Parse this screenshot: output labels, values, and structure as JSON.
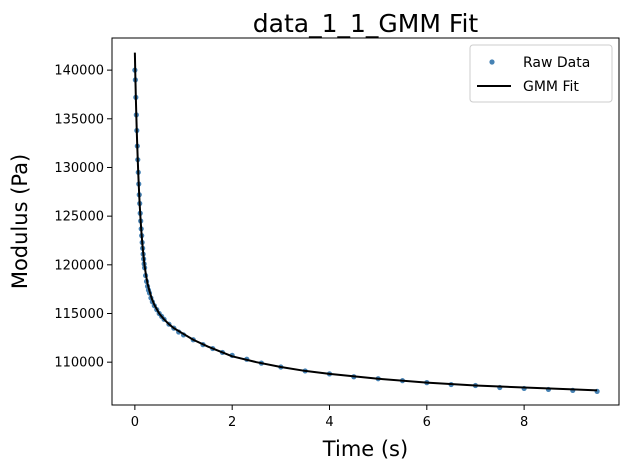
{
  "chart_data": {
    "type": "scatter",
    "title": "data_1_1_GMM Fit",
    "xlabel": "Time (s)",
    "ylabel": "Modulus (Pa)",
    "xlim": [
      -0.47,
      9.95
    ],
    "ylim": [
      105600,
      143300
    ],
    "xticks": [
      0,
      2,
      4,
      6,
      8
    ],
    "yticks": [
      110000,
      115000,
      120000,
      125000,
      130000,
      135000,
      140000
    ],
    "grid": false,
    "legend_position": "top-right",
    "colors": {
      "raw": "#4682b4",
      "fit": "#000000"
    },
    "series": [
      {
        "name": "Raw Data",
        "kind": "points",
        "x": [
          0.0,
          0.01,
          0.02,
          0.03,
          0.04,
          0.05,
          0.06,
          0.07,
          0.08,
          0.09,
          0.1,
          0.11,
          0.12,
          0.13,
          0.14,
          0.15,
          0.16,
          0.17,
          0.18,
          0.19,
          0.2,
          0.22,
          0.24,
          0.26,
          0.28,
          0.3,
          0.33,
          0.36,
          0.4,
          0.45,
          0.5,
          0.55,
          0.6,
          0.7,
          0.8,
          0.9,
          1.0,
          1.2,
          1.4,
          1.6,
          1.8,
          2.0,
          2.3,
          2.6,
          3.0,
          3.5,
          4.0,
          4.5,
          5.0,
          5.5,
          6.0,
          6.5,
          7.0,
          7.5,
          8.0,
          8.5,
          9.0,
          9.5
        ],
        "y": [
          140000,
          139000,
          137200,
          135400,
          133800,
          132200,
          130800,
          129500,
          128300,
          127200,
          126300,
          125300,
          124500,
          123700,
          123000,
          122300,
          121700,
          121100,
          120600,
          120100,
          119700,
          118900,
          118300,
          117800,
          117400,
          117100,
          116600,
          116200,
          115800,
          115400,
          115000,
          114700,
          114400,
          113900,
          113500,
          113100,
          112800,
          112300,
          111800,
          111400,
          111000,
          110700,
          110300,
          109900,
          109500,
          109100,
          108800,
          108500,
          108300,
          108100,
          107900,
          107700,
          107600,
          107400,
          107300,
          107200,
          107100,
          107000
        ]
      },
      {
        "name": "GMM Fit",
        "kind": "line",
        "x": [
          0.0,
          0.01,
          0.02,
          0.03,
          0.04,
          0.05,
          0.06,
          0.07,
          0.08,
          0.09,
          0.1,
          0.12,
          0.14,
          0.16,
          0.18,
          0.2,
          0.23,
          0.26,
          0.3,
          0.35,
          0.4,
          0.5,
          0.6,
          0.7,
          0.8,
          1.0,
          1.2,
          1.5,
          2.0,
          2.5,
          3.0,
          3.5,
          4.0,
          5.0,
          6.0,
          7.0,
          8.0,
          9.0,
          9.5
        ],
        "y": [
          141800,
          139300,
          137200,
          135300,
          133600,
          132100,
          130700,
          129400,
          128200,
          127100,
          126100,
          124400,
          123000,
          121800,
          120800,
          119900,
          118900,
          118100,
          117300,
          116500,
          115900,
          115000,
          114400,
          113900,
          113500,
          112900,
          112300,
          111600,
          110600,
          110000,
          109500,
          109100,
          108800,
          108300,
          107900,
          107600,
          107400,
          107200,
          107100
        ]
      }
    ]
  }
}
